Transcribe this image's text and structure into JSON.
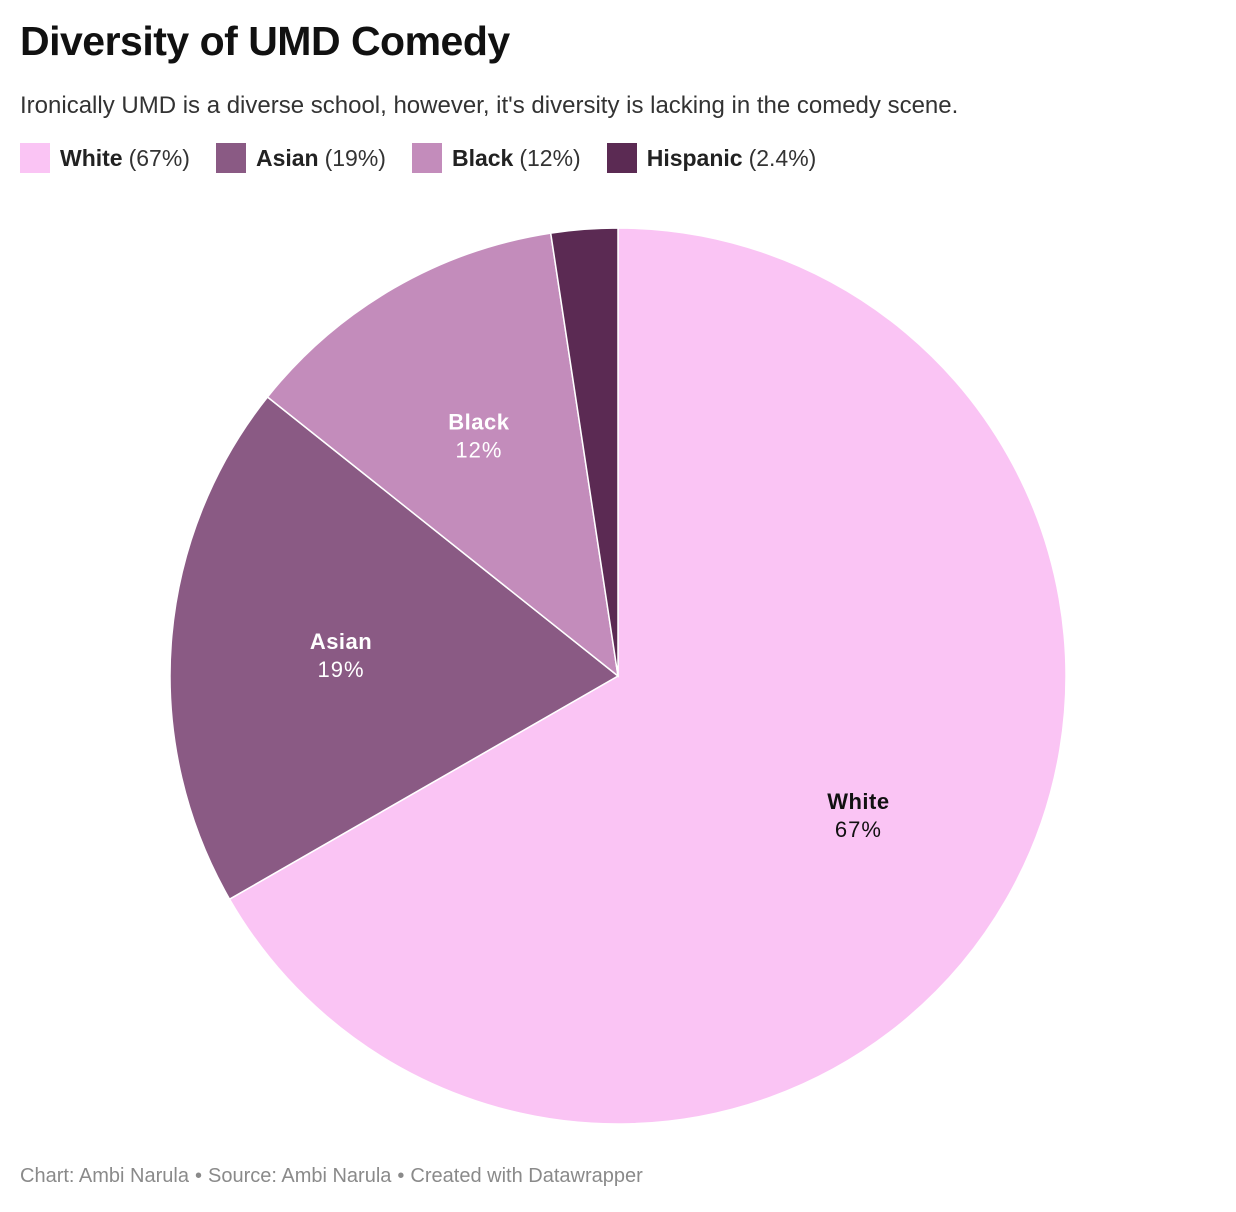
{
  "title": "Diversity of UMD Comedy",
  "subtitle": "Ironically UMD is a diverse school, however, it's diversity is lacking in the comedy scene.",
  "legend": [
    {
      "name": "White",
      "value_text": "(67%)",
      "color": "#fac4f4"
    },
    {
      "name": "Asian",
      "value_text": "(19%)",
      "color": "#8a5a84"
    },
    {
      "name": "Black",
      "value_text": "(12%)",
      "color": "#c38cbb"
    },
    {
      "name": "Hispanic",
      "value_text": "(2.4%)",
      "color": "#5b2a53"
    }
  ],
  "chart_data": {
    "type": "pie",
    "title": "Diversity of UMD Comedy",
    "legend_position": "top",
    "slices": [
      {
        "label": "White",
        "value": 66.7,
        "display": "67%",
        "color": "#fac4f4",
        "label_color": "#111111",
        "show_label": true
      },
      {
        "label": "Asian",
        "value": 19.0,
        "display": "19%",
        "color": "#8a5a84",
        "label_color": "#ffffff",
        "show_label": true
      },
      {
        "label": "Black",
        "value": 11.9,
        "display": "12%",
        "color": "#c38cbb",
        "label_color": "#ffffff",
        "show_label": true
      },
      {
        "label": "Hispanic",
        "value": 2.4,
        "display": "2.4%",
        "color": "#5b2a53",
        "label_color": "#ffffff",
        "show_label": false
      }
    ]
  },
  "footer": {
    "chart_credit": "Chart: Ambi Narula",
    "separator": "•",
    "source": "Source: Ambi Narula",
    "created": "Created with Datawrapper"
  }
}
